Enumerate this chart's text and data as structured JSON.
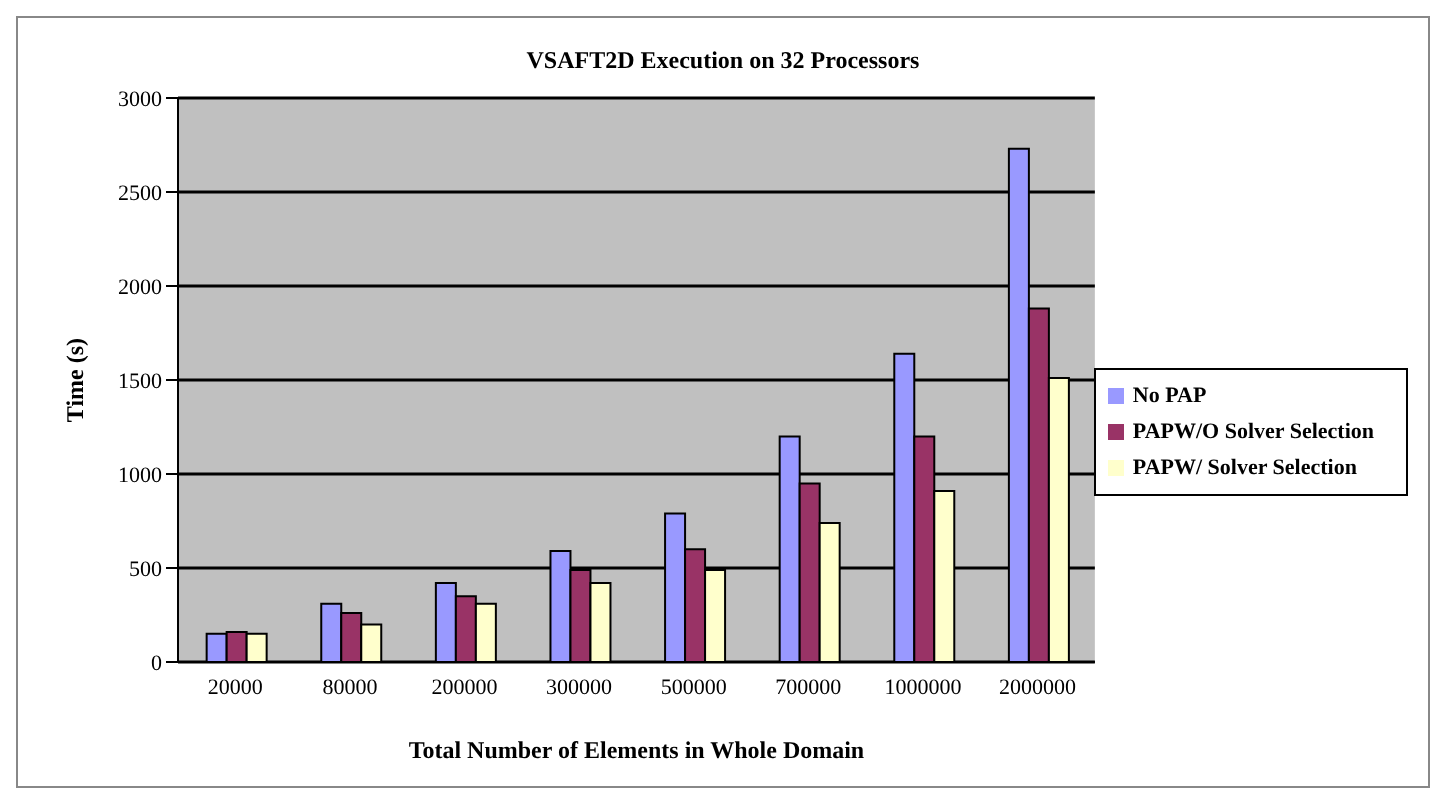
{
  "chart_data": {
    "type": "bar",
    "title": "VSAFT2D Execution on 32 Processors",
    "xlabel": "Total Number of Elements in Whole Domain",
    "ylabel": "Time (s)",
    "categories": [
      "20000",
      "80000",
      "200000",
      "300000",
      "500000",
      "700000",
      "1000000",
      "2000000"
    ],
    "series": [
      {
        "name": "No PAP",
        "color": "#9999ff",
        "values": [
          150,
          310,
          420,
          590,
          790,
          1200,
          1640,
          2730
        ]
      },
      {
        "name": "PAPW/O Solver Selection",
        "color": "#993366",
        "values": [
          160,
          260,
          350,
          490,
          600,
          950,
          1200,
          1880
        ]
      },
      {
        "name": "PAPW/ Solver Selection",
        "color": "#ffffcc",
        "values": [
          150,
          200,
          310,
          420,
          490,
          740,
          910,
          1510
        ]
      }
    ],
    "ylim": [
      0,
      3000
    ],
    "yticks": [
      0,
      500,
      1000,
      1500,
      2000,
      2500,
      3000
    ],
    "grid": "y",
    "legend": "right"
  }
}
